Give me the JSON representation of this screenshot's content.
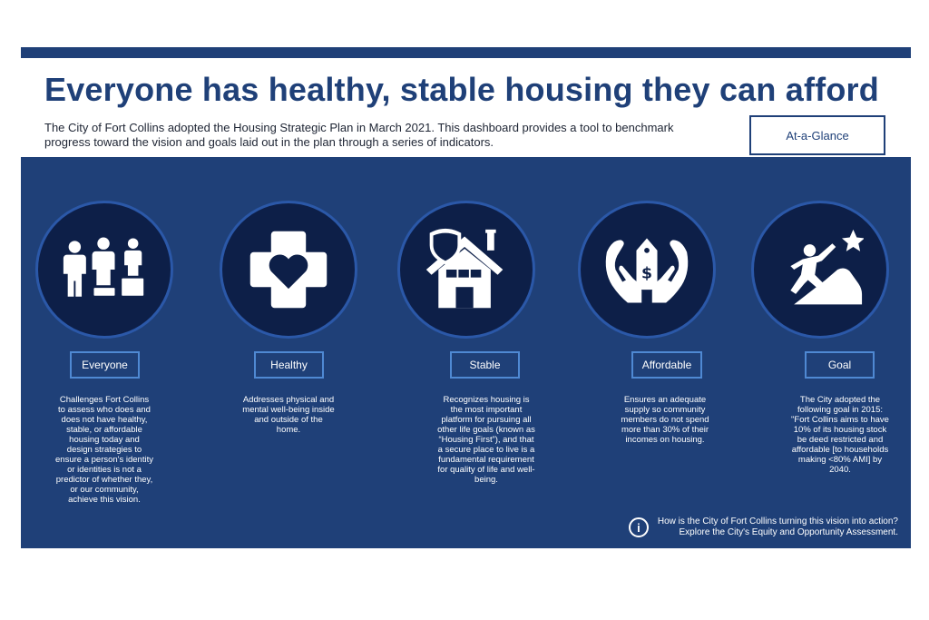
{
  "header": {
    "title": "Everyone has healthy, stable housing they can afford",
    "intro": "The City of Fort Collins adopted the Housing Strategic Plan in March 2021. This dashboard provides a tool to benchmark progress toward the vision and goals laid out in the plan through a series of indicators.",
    "glance_button": "At-a-Glance"
  },
  "pillars": [
    {
      "icon": "people-equity-icon",
      "label": "Everyone",
      "text": "Challenges Fort Collins to assess who does and does not have healthy, stable, or affordable housing today and design strategies to ensure a person's identity or identities is not a predictor of whether they, or our community, achieve this vision."
    },
    {
      "icon": "heart-cross-icon",
      "label": "Healthy",
      "text": "Addresses physical and mental well-being inside and outside of the home."
    },
    {
      "icon": "house-shield-icon",
      "label": "Stable",
      "text": "Recognizes housing is the most important platform for pursuing all other life goals (known as “Housing First”), and that a secure place to live is a fundamental requirement for quality of life and well-being."
    },
    {
      "icon": "hands-price-tag-icon",
      "label": "Affordable",
      "text": "Ensures an adequate supply so community members do not spend more than 30% of their incomes on housing."
    },
    {
      "icon": "climber-star-icon",
      "label": "Goal",
      "text": "The City adopted the following goal in 2015: \"Fort Collins aims to have 10% of its housing stock be deed restricted and affordable [to households making <80% AMI] by 2040."
    }
  ],
  "footer": {
    "line1": "How is the City of Fort Collins turning this vision into action?",
    "line2": "Explore the City's Equity and Opportunity Assessment."
  },
  "colors": {
    "brand": "#1f4078",
    "circle": "#0d1f48",
    "tag_border": "#4f89d3"
  }
}
